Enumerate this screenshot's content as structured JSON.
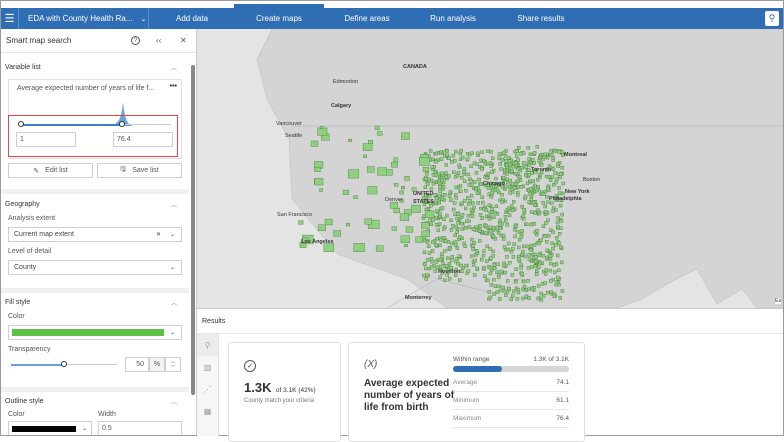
{
  "header": {
    "menu_icon": "hamburger-icon",
    "project": "EDA with County Health Ra...",
    "tabs": [
      "Add data",
      "Create maps",
      "Define areas",
      "Run analysis",
      "Share results"
    ],
    "active_tab": "Create maps",
    "pin_icon": "map-pin-icon",
    "color": "#2f6db5"
  },
  "panel": {
    "title": "Smart map search",
    "variable_list": {
      "heading": "Variable list",
      "variable": "Average expected number of years of life f...",
      "min": "1",
      "max": "76.4",
      "edit_label": "Edit list",
      "save_label": "Save list"
    },
    "geography": {
      "heading": "Geography",
      "extent_label": "Analysis extent",
      "extent_value": "Current map extent",
      "detail_label": "Level of detail",
      "detail_value": "County"
    },
    "fill": {
      "heading": "Fill style",
      "color_label": "Color",
      "color": "#5cc04a",
      "transparency_label": "Transparency",
      "transparency": "50",
      "unit": "%",
      "transparency_fraction": 0.5
    },
    "outline": {
      "heading": "Outline style",
      "color_label": "Color",
      "color": "#000000",
      "width_label": "Width",
      "width": "0.5"
    }
  },
  "map": {
    "labels": {
      "canada": "CANADA",
      "edmonton": "Edmonton",
      "calgary": "Calgary",
      "vancouver": "Vancouver",
      "seattle": "Seattle",
      "montreal": "Montreal",
      "toronto": "Toronto",
      "boston": "Boston",
      "chicago": "Chicago",
      "new_york": "New York",
      "philadelphia": "Philadelphia",
      "united": "UNITED",
      "states": "STATES",
      "denver": "Denver",
      "san_francisco": "San Francisco",
      "los_angeles": "Los Angeles",
      "houston": "Houston",
      "monterrey": "Monterrey",
      "esri": "Es"
    },
    "highlight_color": "#8fd07f"
  },
  "results": {
    "title": "Results",
    "count": "1.3K",
    "count_of": "of 3.1K (42%)",
    "count_caption": "County match your criteria",
    "variable": "Average expected number of years of life from birth",
    "within_label": "Within range",
    "within_value": "1.3K of 3.1K",
    "within_fraction": 0.42,
    "stats": [
      {
        "label": "Average",
        "value": "74.1"
      },
      {
        "label": "Minimum",
        "value": "61.1"
      },
      {
        "label": "Maximum",
        "value": "76.4"
      }
    ]
  }
}
